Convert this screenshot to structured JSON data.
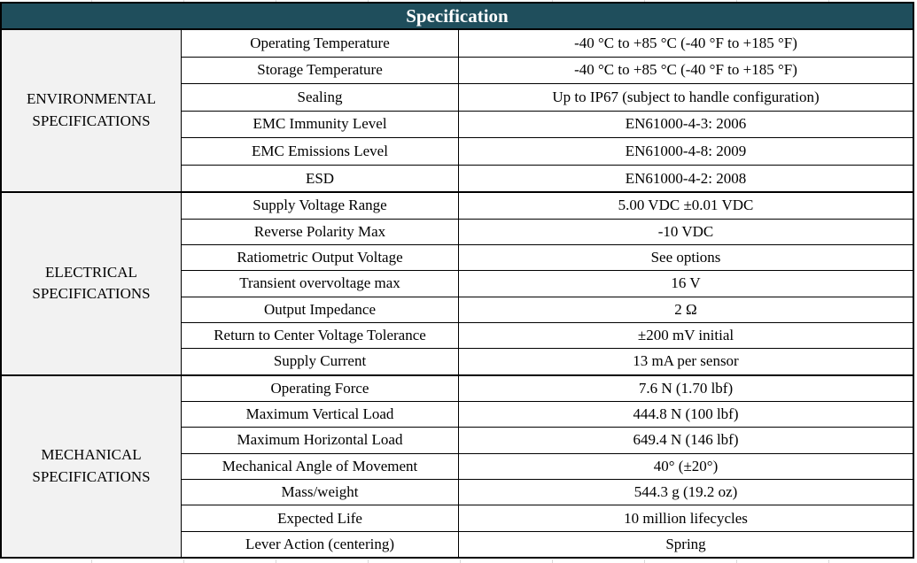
{
  "title": "Specification",
  "colors": {
    "header_bg": "#1f4e5c",
    "header_text": "#ffffff",
    "section_bg": "#f2f2f2",
    "border": "#000000"
  },
  "sections": [
    {
      "name": "ENVIRONMENTAL SPECIFICATIONS",
      "rows": [
        {
          "param": "Operating Temperature",
          "value": "-40 °C to +85 °C (-40 °F to +185 °F)"
        },
        {
          "param": "Storage Temperature",
          "value": "-40 °C to +85 °C (-40 °F to +185 °F)"
        },
        {
          "param": "Sealing",
          "value": "Up to IP67 (subject to handle configuration)"
        },
        {
          "param": "EMC Immunity Level",
          "value": "EN61000-4-3: 2006"
        },
        {
          "param": "EMC Emissions Level",
          "value": "EN61000-4-8: 2009"
        },
        {
          "param": "ESD",
          "value": "EN61000-4-2: 2008"
        }
      ]
    },
    {
      "name": "ELECTRICAL SPECIFICATIONS",
      "rows": [
        {
          "param": "Supply Voltage Range",
          "value": "5.00 VDC ±0.01 VDC"
        },
        {
          "param": "Reverse Polarity Max",
          "value": "-10 VDC"
        },
        {
          "param": "Ratiometric Output Voltage",
          "value": "See options"
        },
        {
          "param": "Transient overvoltage max",
          "value": "16 V"
        },
        {
          "param": "Output Impedance",
          "value": "2 Ω"
        },
        {
          "param": "Return to Center Voltage Tolerance",
          "value": "±200 mV initial"
        },
        {
          "param": "Supply Current",
          "value": "13 mA per sensor"
        }
      ]
    },
    {
      "name": "MECHANICAL SPECIFICATIONS",
      "rows": [
        {
          "param": "Operating Force",
          "value": "7.6 N (1.70 lbf)"
        },
        {
          "param": "Maximum Vertical Load",
          "value": "444.8 N (100 lbf)"
        },
        {
          "param": "Maximum Horizontal Load",
          "value": "649.4 N (146 lbf)"
        },
        {
          "param": "Mechanical Angle of Movement",
          "value": "40° (±20°)"
        },
        {
          "param": "Mass/weight",
          "value": "544.3 g (19.2 oz)"
        },
        {
          "param": "Expected Life",
          "value": "10 million lifecycles"
        },
        {
          "param": "Lever Action (centering)",
          "value": "Spring"
        }
      ]
    }
  ]
}
